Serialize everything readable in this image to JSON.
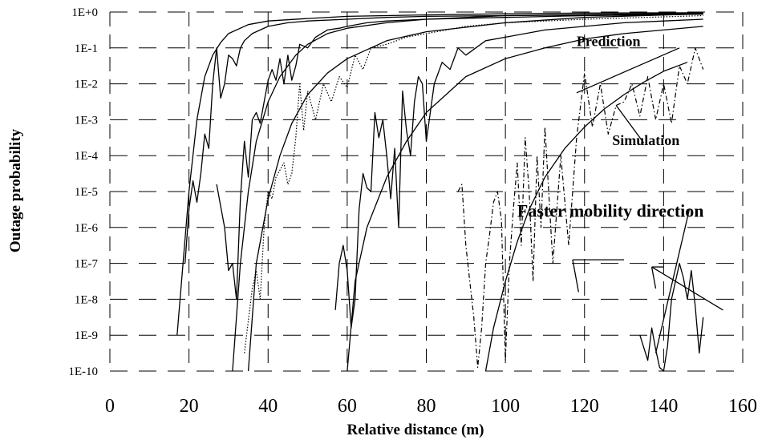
{
  "chart_data": {
    "type": "line",
    "title": "",
    "xlabel": "Relative distance (m)",
    "ylabel": "Outage probability",
    "xlim": [
      0,
      160
    ],
    "x_ticks": [
      0,
      20,
      40,
      60,
      80,
      100,
      120,
      140,
      160
    ],
    "ylim_log10": [
      -10,
      0
    ],
    "y_ticks": [
      "1E+0",
      "1E-1",
      "1E-2",
      "1E-3",
      "1E-4",
      "1E-5",
      "1E-6",
      "1E-7",
      "1E-8",
      "1E-9",
      "1E-10"
    ],
    "y_scale": "log",
    "grid": "dashed horizontal and vertical",
    "legend": "none",
    "annotations": [
      {
        "text": "Prediction",
        "at": [
          118,
          -0.95
        ],
        "size": "medium"
      },
      {
        "text": "Simulation",
        "at": [
          127,
          -3.7
        ],
        "size": "medium"
      },
      {
        "text": "Faster mobility direction",
        "at": [
          103,
          -5.7
        ],
        "size": "large"
      }
    ],
    "series": [
      {
        "style": "prediction",
        "x": [
          17,
          20,
          22,
          24,
          26,
          28,
          30,
          35,
          40,
          50,
          60,
          80,
          100,
          120,
          150
        ],
        "log10_y": [
          -9.0,
          -5.0,
          -3.0,
          -1.8,
          -1.2,
          -0.85,
          -0.6,
          -0.35,
          -0.25,
          -0.18,
          -0.12,
          -0.08,
          -0.05,
          -0.03,
          -0.02
        ]
      },
      {
        "style": "prediction",
        "x": [
          31,
          33,
          35,
          37,
          40,
          43,
          47,
          50,
          55,
          60,
          70,
          80,
          100,
          150
        ],
        "log10_y": [
          -10.0,
          -7.0,
          -5.0,
          -3.6,
          -2.5,
          -1.8,
          -1.2,
          -0.9,
          -0.6,
          -0.45,
          -0.3,
          -0.2,
          -0.1,
          -0.03
        ]
      },
      {
        "style": "prediction",
        "x": [
          35,
          37,
          40,
          43,
          46,
          50,
          55,
          60,
          70,
          80,
          100,
          120,
          150
        ],
        "log10_y": [
          -10.0,
          -7.0,
          -5.2,
          -4.0,
          -3.1,
          -2.3,
          -1.7,
          -1.3,
          -0.8,
          -0.55,
          -0.3,
          -0.15,
          -0.05
        ]
      },
      {
        "style": "prediction",
        "x": [
          60,
          62,
          65,
          70,
          75,
          80,
          85,
          90,
          100,
          110,
          120,
          130,
          140,
          150
        ],
        "log10_y": [
          -10.0,
          -7.5,
          -6.0,
          -4.6,
          -3.6,
          -2.8,
          -2.3,
          -1.8,
          -1.3,
          -1.0,
          -0.75,
          -0.6,
          -0.5,
          -0.4
        ]
      },
      {
        "style": "prediction",
        "x": [
          95,
          97,
          100,
          103,
          106,
          110,
          115,
          120,
          125,
          130,
          135,
          140,
          146
        ],
        "log10_y": [
          -10.0,
          -8.8,
          -7.5,
          -6.4,
          -5.5,
          -4.6,
          -3.8,
          -3.2,
          -2.7,
          -2.3,
          -1.95,
          -1.65,
          -1.4
        ]
      },
      {
        "style": "simulation-solid",
        "x": [
          19,
          20,
          21,
          22,
          23,
          24,
          25,
          26,
          27,
          28,
          29,
          30,
          31,
          32,
          33,
          34,
          36,
          38,
          40,
          45,
          50,
          60,
          70,
          80,
          100,
          120,
          150
        ],
        "log10_y": [
          -7.0,
          -5.5,
          -4.7,
          -5.3,
          -4.5,
          -3.4,
          -3.8,
          -2.0,
          -1.0,
          -2.4,
          -2.0,
          -1.2,
          -1.3,
          -1.5,
          -1.0,
          -0.8,
          -0.6,
          -0.5,
          -0.4,
          -0.3,
          -0.25,
          -0.2,
          -0.15,
          -0.12,
          -0.1,
          -0.08,
          -0.05
        ]
      },
      {
        "style": "simulation-solid",
        "x": [
          27,
          29,
          30,
          31,
          32,
          33,
          34,
          35,
          36,
          37,
          38,
          39,
          40,
          41,
          42,
          43,
          44,
          45,
          46,
          47,
          48,
          50,
          52,
          55,
          58,
          60,
          65,
          70,
          80,
          100,
          120,
          150
        ],
        "log10_y": [
          -4.8,
          -6.0,
          -7.2,
          -7.0,
          -8.0,
          -5.2,
          -3.6,
          -4.6,
          -3.0,
          -2.8,
          -3.1,
          -2.5,
          -1.9,
          -1.6,
          -1.9,
          -1.3,
          -2.0,
          -1.2,
          -1.9,
          -1.5,
          -0.9,
          -1.0,
          -0.7,
          -0.5,
          -0.45,
          -0.4,
          -0.3,
          -0.25,
          -0.2,
          -0.15,
          -0.1,
          -0.06
        ]
      },
      {
        "style": "simulation-dotted",
        "x": [
          34,
          36,
          37,
          38,
          39,
          40,
          41,
          42,
          44,
          45,
          46,
          47,
          48,
          49,
          50,
          52,
          54,
          56,
          58,
          60,
          62,
          64,
          66,
          70,
          75,
          80,
          90,
          100,
          120,
          150
        ],
        "log10_y": [
          -9.5,
          -7.7,
          -7.2,
          -8.0,
          -6.0,
          -5.0,
          -5.2,
          -4.6,
          -4.2,
          -4.8,
          -4.5,
          -3.5,
          -2.0,
          -3.3,
          -2.2,
          -3.0,
          -2.0,
          -2.5,
          -1.8,
          -2.1,
          -1.2,
          -1.6,
          -1.0,
          -0.9,
          -0.7,
          -0.6,
          -0.4,
          -0.3,
          -0.2,
          -0.1
        ]
      },
      {
        "style": "simulation-solid",
        "x": [
          57,
          58,
          59,
          60,
          61,
          62,
          63,
          64,
          65,
          66,
          67,
          68,
          69,
          70,
          71,
          72,
          73,
          74,
          75,
          76,
          77,
          78,
          79,
          80,
          82,
          84,
          86,
          88,
          90,
          95,
          100,
          110,
          120,
          130,
          140,
          150
        ],
        "log10_y": [
          -8.3,
          -7.0,
          -6.5,
          -7.2,
          -8.8,
          -8.0,
          -5.5,
          -4.5,
          -4.9,
          -5.0,
          -2.8,
          -3.5,
          -3.0,
          -4.0,
          -5.2,
          -3.8,
          -6.0,
          -2.2,
          -3.3,
          -4.0,
          -2.5,
          -1.8,
          -2.0,
          -3.6,
          -2.0,
          -1.4,
          -1.6,
          -1.0,
          -1.2,
          -0.8,
          -0.7,
          -0.5,
          -0.4,
          -0.3,
          -0.25,
          -0.2
        ]
      },
      {
        "style": "simulation-dashdot",
        "x": [
          88,
          89,
          90,
          91,
          92,
          93,
          94,
          95,
          96,
          97,
          98,
          99,
          100,
          101,
          102,
          103,
          104,
          105,
          106,
          107,
          108,
          109,
          110,
          112,
          114,
          116,
          118,
          120,
          122,
          124,
          126,
          128,
          130,
          132,
          134,
          136,
          138,
          140,
          142,
          144,
          146,
          148,
          150
        ],
        "log10_y": [
          -5.0,
          -4.8,
          -6.5,
          -7.5,
          -8.5,
          -9.9,
          -8.8,
          -7.0,
          -6.2,
          -5.3,
          -5.0,
          -5.8,
          -9.7,
          -7.0,
          -5.5,
          -4.2,
          -6.5,
          -3.5,
          -5.0,
          -7.5,
          -4.0,
          -6.0,
          -3.2,
          -7.0,
          -4.0,
          -6.5,
          -3.5,
          -1.7,
          -3.2,
          -2.0,
          -3.4,
          -2.6,
          -2.5,
          -2.0,
          -2.9,
          -1.8,
          -3.0,
          -2.0,
          -3.1,
          -1.5,
          -2.0,
          -1.0,
          -1.6
        ]
      },
      {
        "style": "simulation-solid",
        "x": [
          134,
          136,
          137,
          138,
          139,
          140,
          141,
          142,
          143,
          144,
          145,
          146,
          147,
          148,
          149,
          150
        ],
        "log10_y": [
          -9.0,
          -9.7,
          -8.8,
          -9.4,
          -9.9,
          -10.2,
          -9.3,
          -8.0,
          -7.5,
          -7.0,
          -7.4,
          -8.0,
          -7.2,
          -8.2,
          -9.5,
          -8.5
        ]
      }
    ]
  }
}
